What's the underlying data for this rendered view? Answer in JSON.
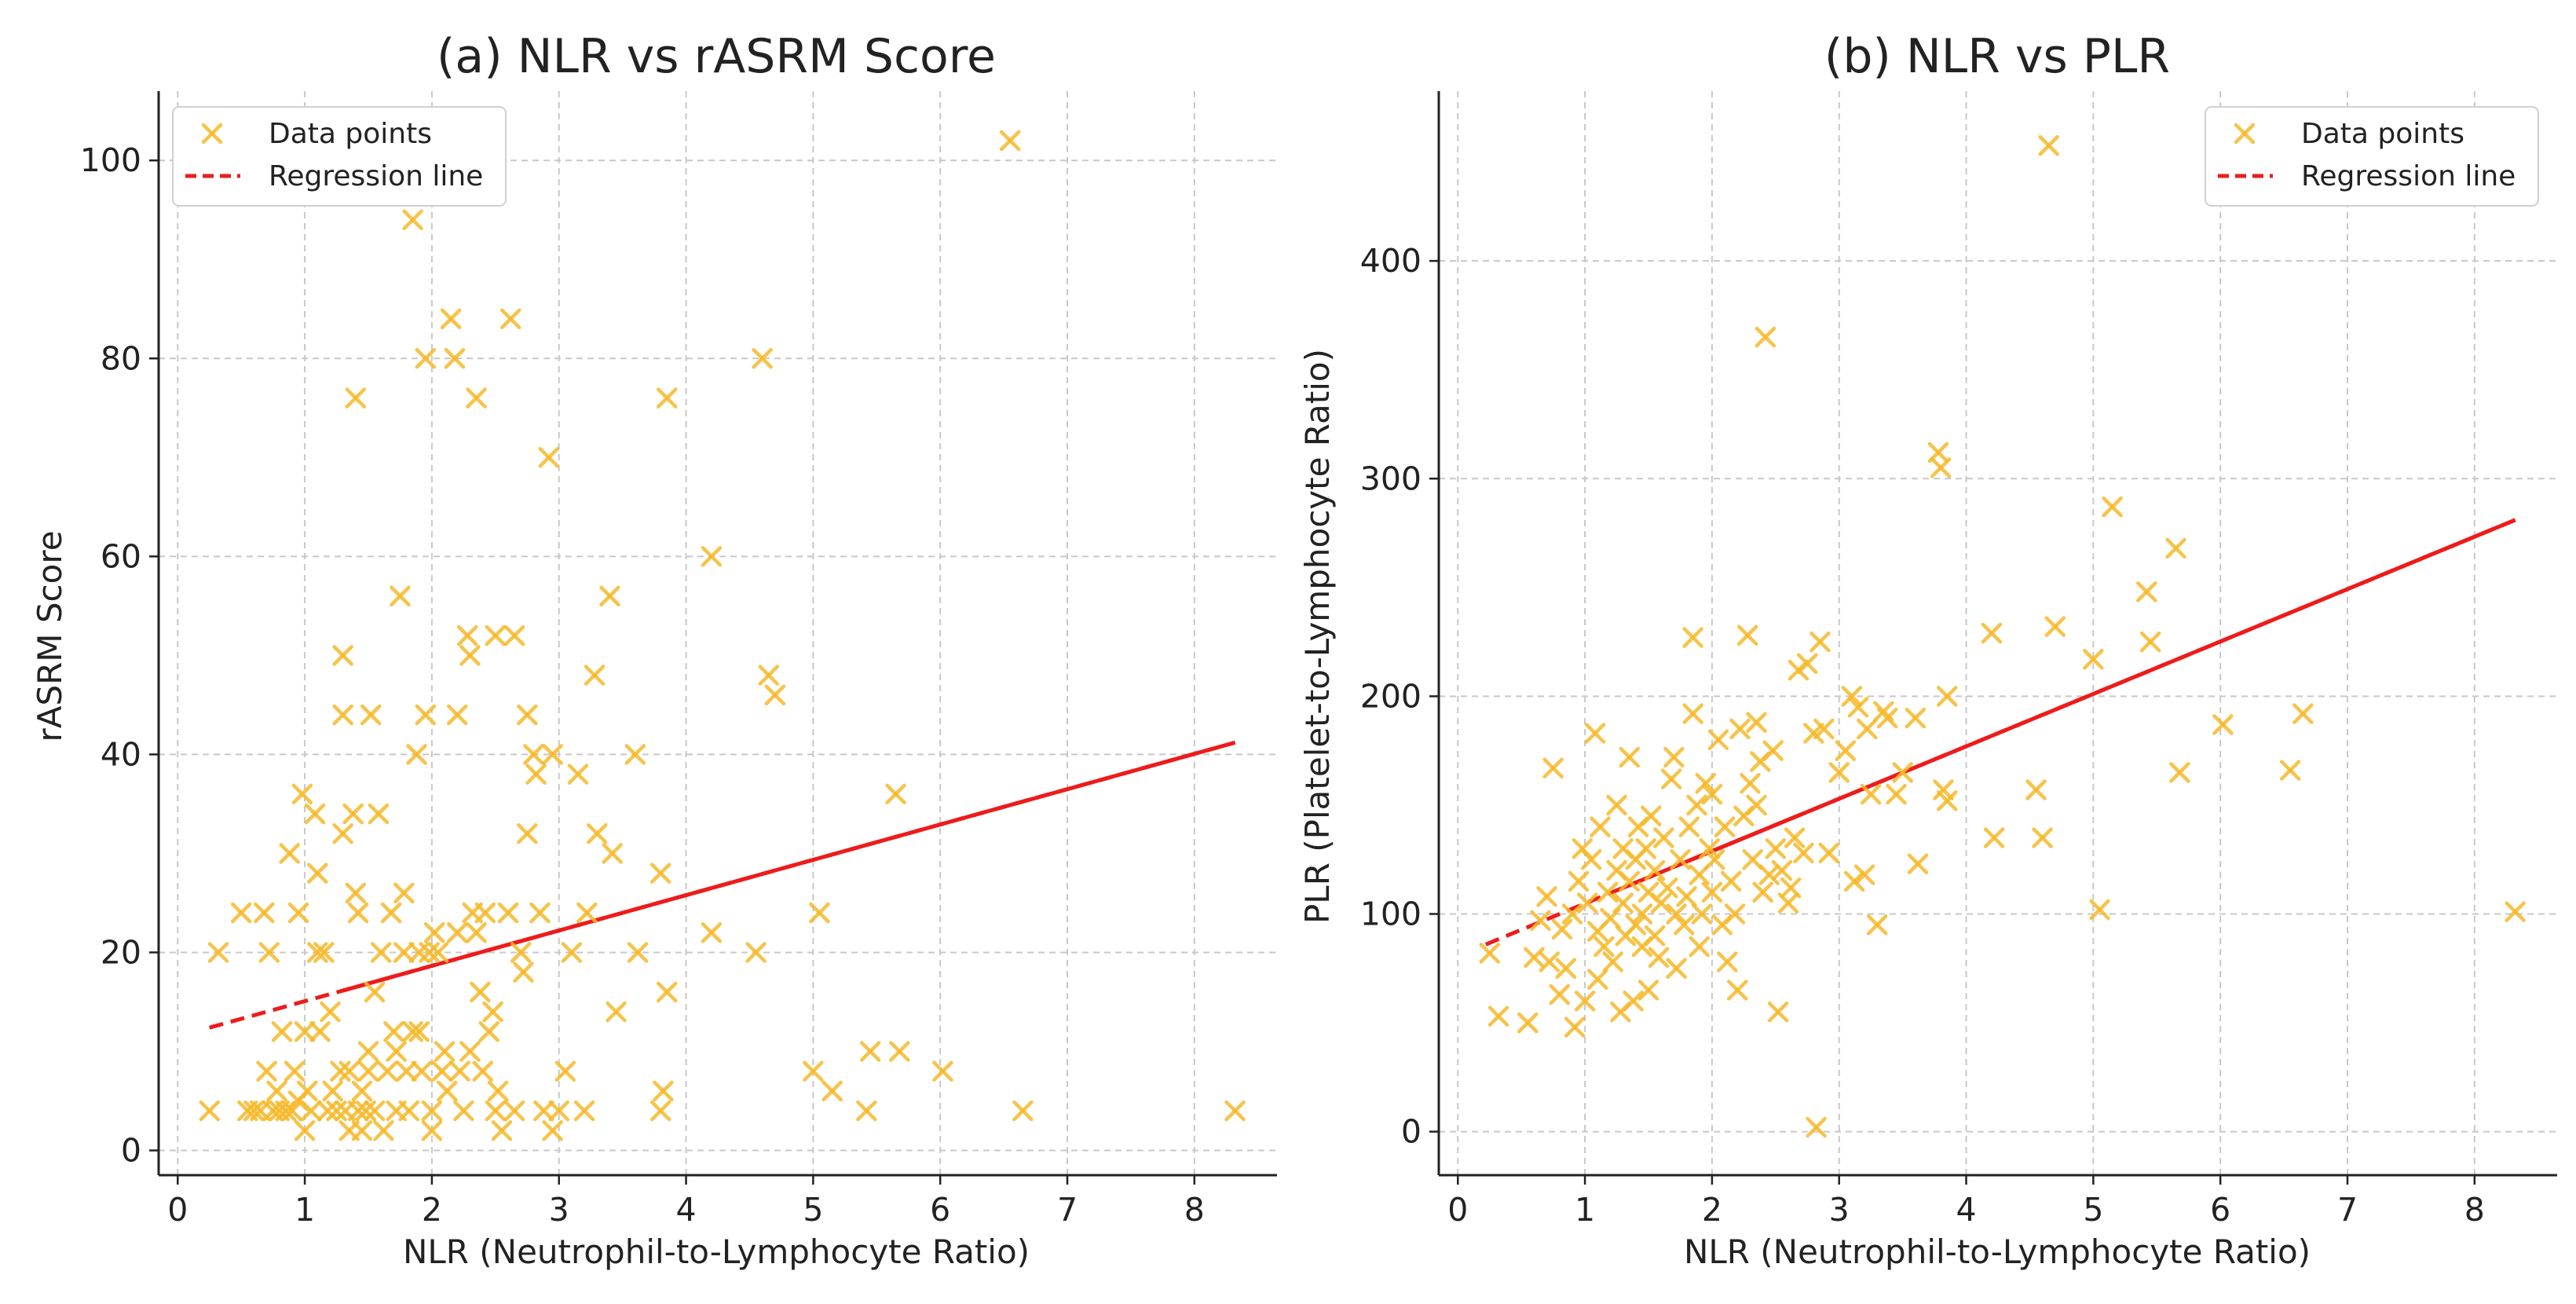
{
  "colors": {
    "points": "#f6b829",
    "line": "#ee1b1b",
    "grid": "#c8c8c8",
    "axis": "#222222"
  },
  "chart_data": [
    {
      "type": "scatter",
      "title": "(a) NLR vs rASRM Score",
      "xlabel": "NLR (Neutrophil-to-Lymphocyte Ratio)",
      "ylabel": "rASRM Score",
      "xlim": [
        -0.15,
        8.65
      ],
      "ylim": [
        -2.5,
        107
      ],
      "xticks": [
        0,
        1,
        2,
        3,
        4,
        5,
        6,
        7,
        8
      ],
      "yticks": [
        0,
        20,
        40,
        60,
        80,
        100
      ],
      "grid": true,
      "legend": {
        "position": "top-left",
        "points_label": "Data points",
        "line_label": "Regression line"
      },
      "regression": {
        "x": [
          0.25,
          8.32
        ],
        "y": [
          12.4,
          41.2
        ]
      },
      "points": [
        [
          0.25,
          4
        ],
        [
          0.32,
          20
        ],
        [
          0.5,
          24
        ],
        [
          0.55,
          4
        ],
        [
          0.6,
          4
        ],
        [
          0.65,
          4
        ],
        [
          0.68,
          24
        ],
        [
          0.7,
          8
        ],
        [
          0.72,
          20
        ],
        [
          0.75,
          4
        ],
        [
          0.78,
          6
        ],
        [
          0.8,
          4
        ],
        [
          0.82,
          12
        ],
        [
          0.85,
          4
        ],
        [
          0.88,
          30
        ],
        [
          0.9,
          4
        ],
        [
          0.92,
          8
        ],
        [
          0.95,
          24
        ],
        [
          0.95,
          5
        ],
        [
          0.98,
          36
        ],
        [
          1.0,
          2
        ],
        [
          1.0,
          12
        ],
        [
          1.02,
          6
        ],
        [
          1.05,
          4
        ],
        [
          1.08,
          34
        ],
        [
          1.1,
          20
        ],
        [
          1.1,
          28
        ],
        [
          1.12,
          12
        ],
        [
          1.15,
          20
        ],
        [
          1.18,
          4
        ],
        [
          1.2,
          14
        ],
        [
          1.22,
          6
        ],
        [
          1.25,
          4
        ],
        [
          1.28,
          8
        ],
        [
          1.3,
          32
        ],
        [
          1.3,
          50
        ],
        [
          1.3,
          44
        ],
        [
          1.32,
          4
        ],
        [
          1.35,
          8
        ],
        [
          1.35,
          2
        ],
        [
          1.38,
          34
        ],
        [
          1.4,
          76
        ],
        [
          1.4,
          26
        ],
        [
          1.42,
          24
        ],
        [
          1.42,
          4
        ],
        [
          1.45,
          2
        ],
        [
          1.45,
          6
        ],
        [
          1.48,
          4
        ],
        [
          1.5,
          10
        ],
        [
          1.5,
          8
        ],
        [
          1.52,
          44
        ],
        [
          1.55,
          16
        ],
        [
          1.55,
          4
        ],
        [
          1.58,
          34
        ],
        [
          1.6,
          20
        ],
        [
          1.62,
          2
        ],
        [
          1.65,
          8
        ],
        [
          1.68,
          24
        ],
        [
          1.7,
          12
        ],
        [
          1.72,
          10
        ],
        [
          1.72,
          4
        ],
        [
          1.75,
          56
        ],
        [
          1.78,
          26
        ],
        [
          1.78,
          20
        ],
        [
          1.8,
          8
        ],
        [
          1.82,
          4
        ],
        [
          1.85,
          94
        ],
        [
          1.85,
          12
        ],
        [
          1.88,
          40
        ],
        [
          1.9,
          20
        ],
        [
          1.9,
          12
        ],
        [
          1.92,
          8
        ],
        [
          1.95,
          80
        ],
        [
          1.95,
          44
        ],
        [
          1.98,
          20
        ],
        [
          2.0,
          2
        ],
        [
          2.0,
          4
        ],
        [
          2.02,
          22
        ],
        [
          2.05,
          20
        ],
        [
          2.08,
          8
        ],
        [
          2.1,
          10
        ],
        [
          2.12,
          6
        ],
        [
          2.15,
          84
        ],
        [
          2.18,
          80
        ],
        [
          2.2,
          44
        ],
        [
          2.2,
          22
        ],
        [
          2.22,
          8
        ],
        [
          2.25,
          4
        ],
        [
          2.28,
          52
        ],
        [
          2.3,
          50
        ],
        [
          2.3,
          10
        ],
        [
          2.32,
          24
        ],
        [
          2.35,
          76
        ],
        [
          2.35,
          22
        ],
        [
          2.38,
          16
        ],
        [
          2.4,
          8
        ],
        [
          2.42,
          24
        ],
        [
          2.45,
          12
        ],
        [
          2.48,
          14
        ],
        [
          2.5,
          52
        ],
        [
          2.5,
          4
        ],
        [
          2.52,
          6
        ],
        [
          2.55,
          2
        ],
        [
          2.6,
          24
        ],
        [
          2.62,
          84
        ],
        [
          2.65,
          52
        ],
        [
          2.65,
          4
        ],
        [
          2.7,
          20
        ],
        [
          2.72,
          18
        ],
        [
          2.75,
          44
        ],
        [
          2.75,
          32
        ],
        [
          2.8,
          40
        ],
        [
          2.82,
          38
        ],
        [
          2.85,
          24
        ],
        [
          2.88,
          4
        ],
        [
          2.92,
          70
        ],
        [
          2.95,
          40
        ],
        [
          2.95,
          2
        ],
        [
          3.0,
          4
        ],
        [
          3.05,
          8
        ],
        [
          3.1,
          20
        ],
        [
          3.15,
          38
        ],
        [
          3.2,
          4
        ],
        [
          3.22,
          24
        ],
        [
          3.28,
          48
        ],
        [
          3.3,
          32
        ],
        [
          3.4,
          56
        ],
        [
          3.42,
          30
        ],
        [
          3.45,
          14
        ],
        [
          3.6,
          40
        ],
        [
          3.62,
          20
        ],
        [
          3.8,
          28
        ],
        [
          3.8,
          4
        ],
        [
          3.82,
          6
        ],
        [
          3.85,
          16
        ],
        [
          3.85,
          76
        ],
        [
          4.2,
          60
        ],
        [
          4.2,
          22
        ],
        [
          4.55,
          20
        ],
        [
          4.6,
          80
        ],
        [
          4.65,
          48
        ],
        [
          4.7,
          46
        ],
        [
          5.0,
          8
        ],
        [
          5.05,
          24
        ],
        [
          5.15,
          6
        ],
        [
          5.42,
          4
        ],
        [
          5.45,
          10
        ],
        [
          5.65,
          36
        ],
        [
          5.68,
          10
        ],
        [
          6.02,
          8
        ],
        [
          6.55,
          102
        ],
        [
          6.65,
          4
        ],
        [
          8.32,
          4
        ]
      ]
    },
    {
      "type": "scatter",
      "title": "(b) NLR vs PLR",
      "xlabel": "NLR (Neutrophil-to-Lymphocyte Ratio)",
      "ylabel": "PLR (Platelet-to-Lymphocyte Ratio)",
      "xlim": [
        -0.15,
        8.65
      ],
      "ylim": [
        -20,
        478
      ],
      "xticks": [
        0,
        1,
        2,
        3,
        4,
        5,
        6,
        7,
        8
      ],
      "yticks": [
        0,
        100,
        200,
        300,
        400
      ],
      "grid": true,
      "legend": {
        "position": "top-right",
        "points_label": "Data points",
        "line_label": "Regression line"
      },
      "regression": {
        "x": [
          0.22,
          8.32
        ],
        "y": [
          86,
          281
        ]
      },
      "points": [
        [
          0.25,
          82
        ],
        [
          0.32,
          53
        ],
        [
          0.55,
          50
        ],
        [
          0.6,
          80
        ],
        [
          0.65,
          97
        ],
        [
          0.7,
          108
        ],
        [
          0.72,
          78
        ],
        [
          0.75,
          167
        ],
        [
          0.8,
          63
        ],
        [
          0.82,
          93
        ],
        [
          0.85,
          75
        ],
        [
          0.9,
          100
        ],
        [
          0.92,
          48
        ],
        [
          0.95,
          115
        ],
        [
          0.98,
          130
        ],
        [
          1.0,
          60
        ],
        [
          1.02,
          105
        ],
        [
          1.05,
          125
        ],
        [
          1.08,
          183
        ],
        [
          1.1,
          70
        ],
        [
          1.1,
          92
        ],
        [
          1.12,
          140
        ],
        [
          1.15,
          85
        ],
        [
          1.18,
          110
        ],
        [
          1.2,
          98
        ],
        [
          1.22,
          78
        ],
        [
          1.25,
          150
        ],
        [
          1.25,
          120
        ],
        [
          1.28,
          55
        ],
        [
          1.3,
          105
        ],
        [
          1.3,
          130
        ],
        [
          1.32,
          90
        ],
        [
          1.35,
          172
        ],
        [
          1.35,
          115
        ],
        [
          1.38,
          60
        ],
        [
          1.4,
          125
        ],
        [
          1.4,
          95
        ],
        [
          1.42,
          140
        ],
        [
          1.45,
          100
        ],
        [
          1.45,
          85
        ],
        [
          1.48,
          130
        ],
        [
          1.5,
          110
        ],
        [
          1.5,
          65
        ],
        [
          1.52,
          145
        ],
        [
          1.55,
          90
        ],
        [
          1.55,
          120
        ],
        [
          1.58,
          80
        ],
        [
          1.6,
          105
        ],
        [
          1.62,
          135
        ],
        [
          1.65,
          112
        ],
        [
          1.68,
          162
        ],
        [
          1.7,
          172
        ],
        [
          1.72,
          100
        ],
        [
          1.72,
          75
        ],
        [
          1.75,
          125
        ],
        [
          1.78,
          95
        ],
        [
          1.8,
          108
        ],
        [
          1.82,
          140
        ],
        [
          1.85,
          192
        ],
        [
          1.85,
          227
        ],
        [
          1.88,
          150
        ],
        [
          1.9,
          118
        ],
        [
          1.9,
          85
        ],
        [
          1.92,
          100
        ],
        [
          1.95,
          160
        ],
        [
          1.98,
          130
        ],
        [
          2.0,
          155
        ],
        [
          2.0,
          110
        ],
        [
          2.02,
          125
        ],
        [
          2.05,
          180
        ],
        [
          2.08,
          95
        ],
        [
          2.1,
          140
        ],
        [
          2.12,
          78
        ],
        [
          2.15,
          115
        ],
        [
          2.18,
          100
        ],
        [
          2.2,
          65
        ],
        [
          2.22,
          185
        ],
        [
          2.25,
          145
        ],
        [
          2.28,
          228
        ],
        [
          2.3,
          160
        ],
        [
          2.32,
          125
        ],
        [
          2.35,
          188
        ],
        [
          2.35,
          150
        ],
        [
          2.38,
          170
        ],
        [
          2.4,
          110
        ],
        [
          2.42,
          365
        ],
        [
          2.45,
          118
        ],
        [
          2.48,
          175
        ],
        [
          2.5,
          130
        ],
        [
          2.52,
          55
        ],
        [
          2.55,
          120
        ],
        [
          2.6,
          105
        ],
        [
          2.62,
          112
        ],
        [
          2.65,
          135
        ],
        [
          2.68,
          212
        ],
        [
          2.72,
          128
        ],
        [
          2.75,
          215
        ],
        [
          2.8,
          183
        ],
        [
          2.82,
          2
        ],
        [
          2.85,
          225
        ],
        [
          2.88,
          185
        ],
        [
          2.92,
          128
        ],
        [
          3.0,
          165
        ],
        [
          3.05,
          175
        ],
        [
          3.1,
          200
        ],
        [
          3.12,
          115
        ],
        [
          3.15,
          195
        ],
        [
          3.2,
          118
        ],
        [
          3.22,
          185
        ],
        [
          3.25,
          155
        ],
        [
          3.3,
          95
        ],
        [
          3.35,
          193
        ],
        [
          3.38,
          190
        ],
        [
          3.45,
          155
        ],
        [
          3.5,
          165
        ],
        [
          3.6,
          190
        ],
        [
          3.62,
          123
        ],
        [
          3.78,
          312
        ],
        [
          3.8,
          305
        ],
        [
          3.82,
          157
        ],
        [
          3.85,
          200
        ],
        [
          3.85,
          152
        ],
        [
          4.2,
          229
        ],
        [
          4.22,
          135
        ],
        [
          4.55,
          157
        ],
        [
          4.6,
          135
        ],
        [
          4.65,
          453
        ],
        [
          4.7,
          232
        ],
        [
          5.0,
          217
        ],
        [
          5.05,
          102
        ],
        [
          5.15,
          287
        ],
        [
          5.42,
          248
        ],
        [
          5.45,
          225
        ],
        [
          5.65,
          268
        ],
        [
          5.68,
          165
        ],
        [
          6.02,
          187
        ],
        [
          6.55,
          166
        ],
        [
          6.65,
          192
        ],
        [
          8.32,
          101
        ]
      ]
    }
  ]
}
